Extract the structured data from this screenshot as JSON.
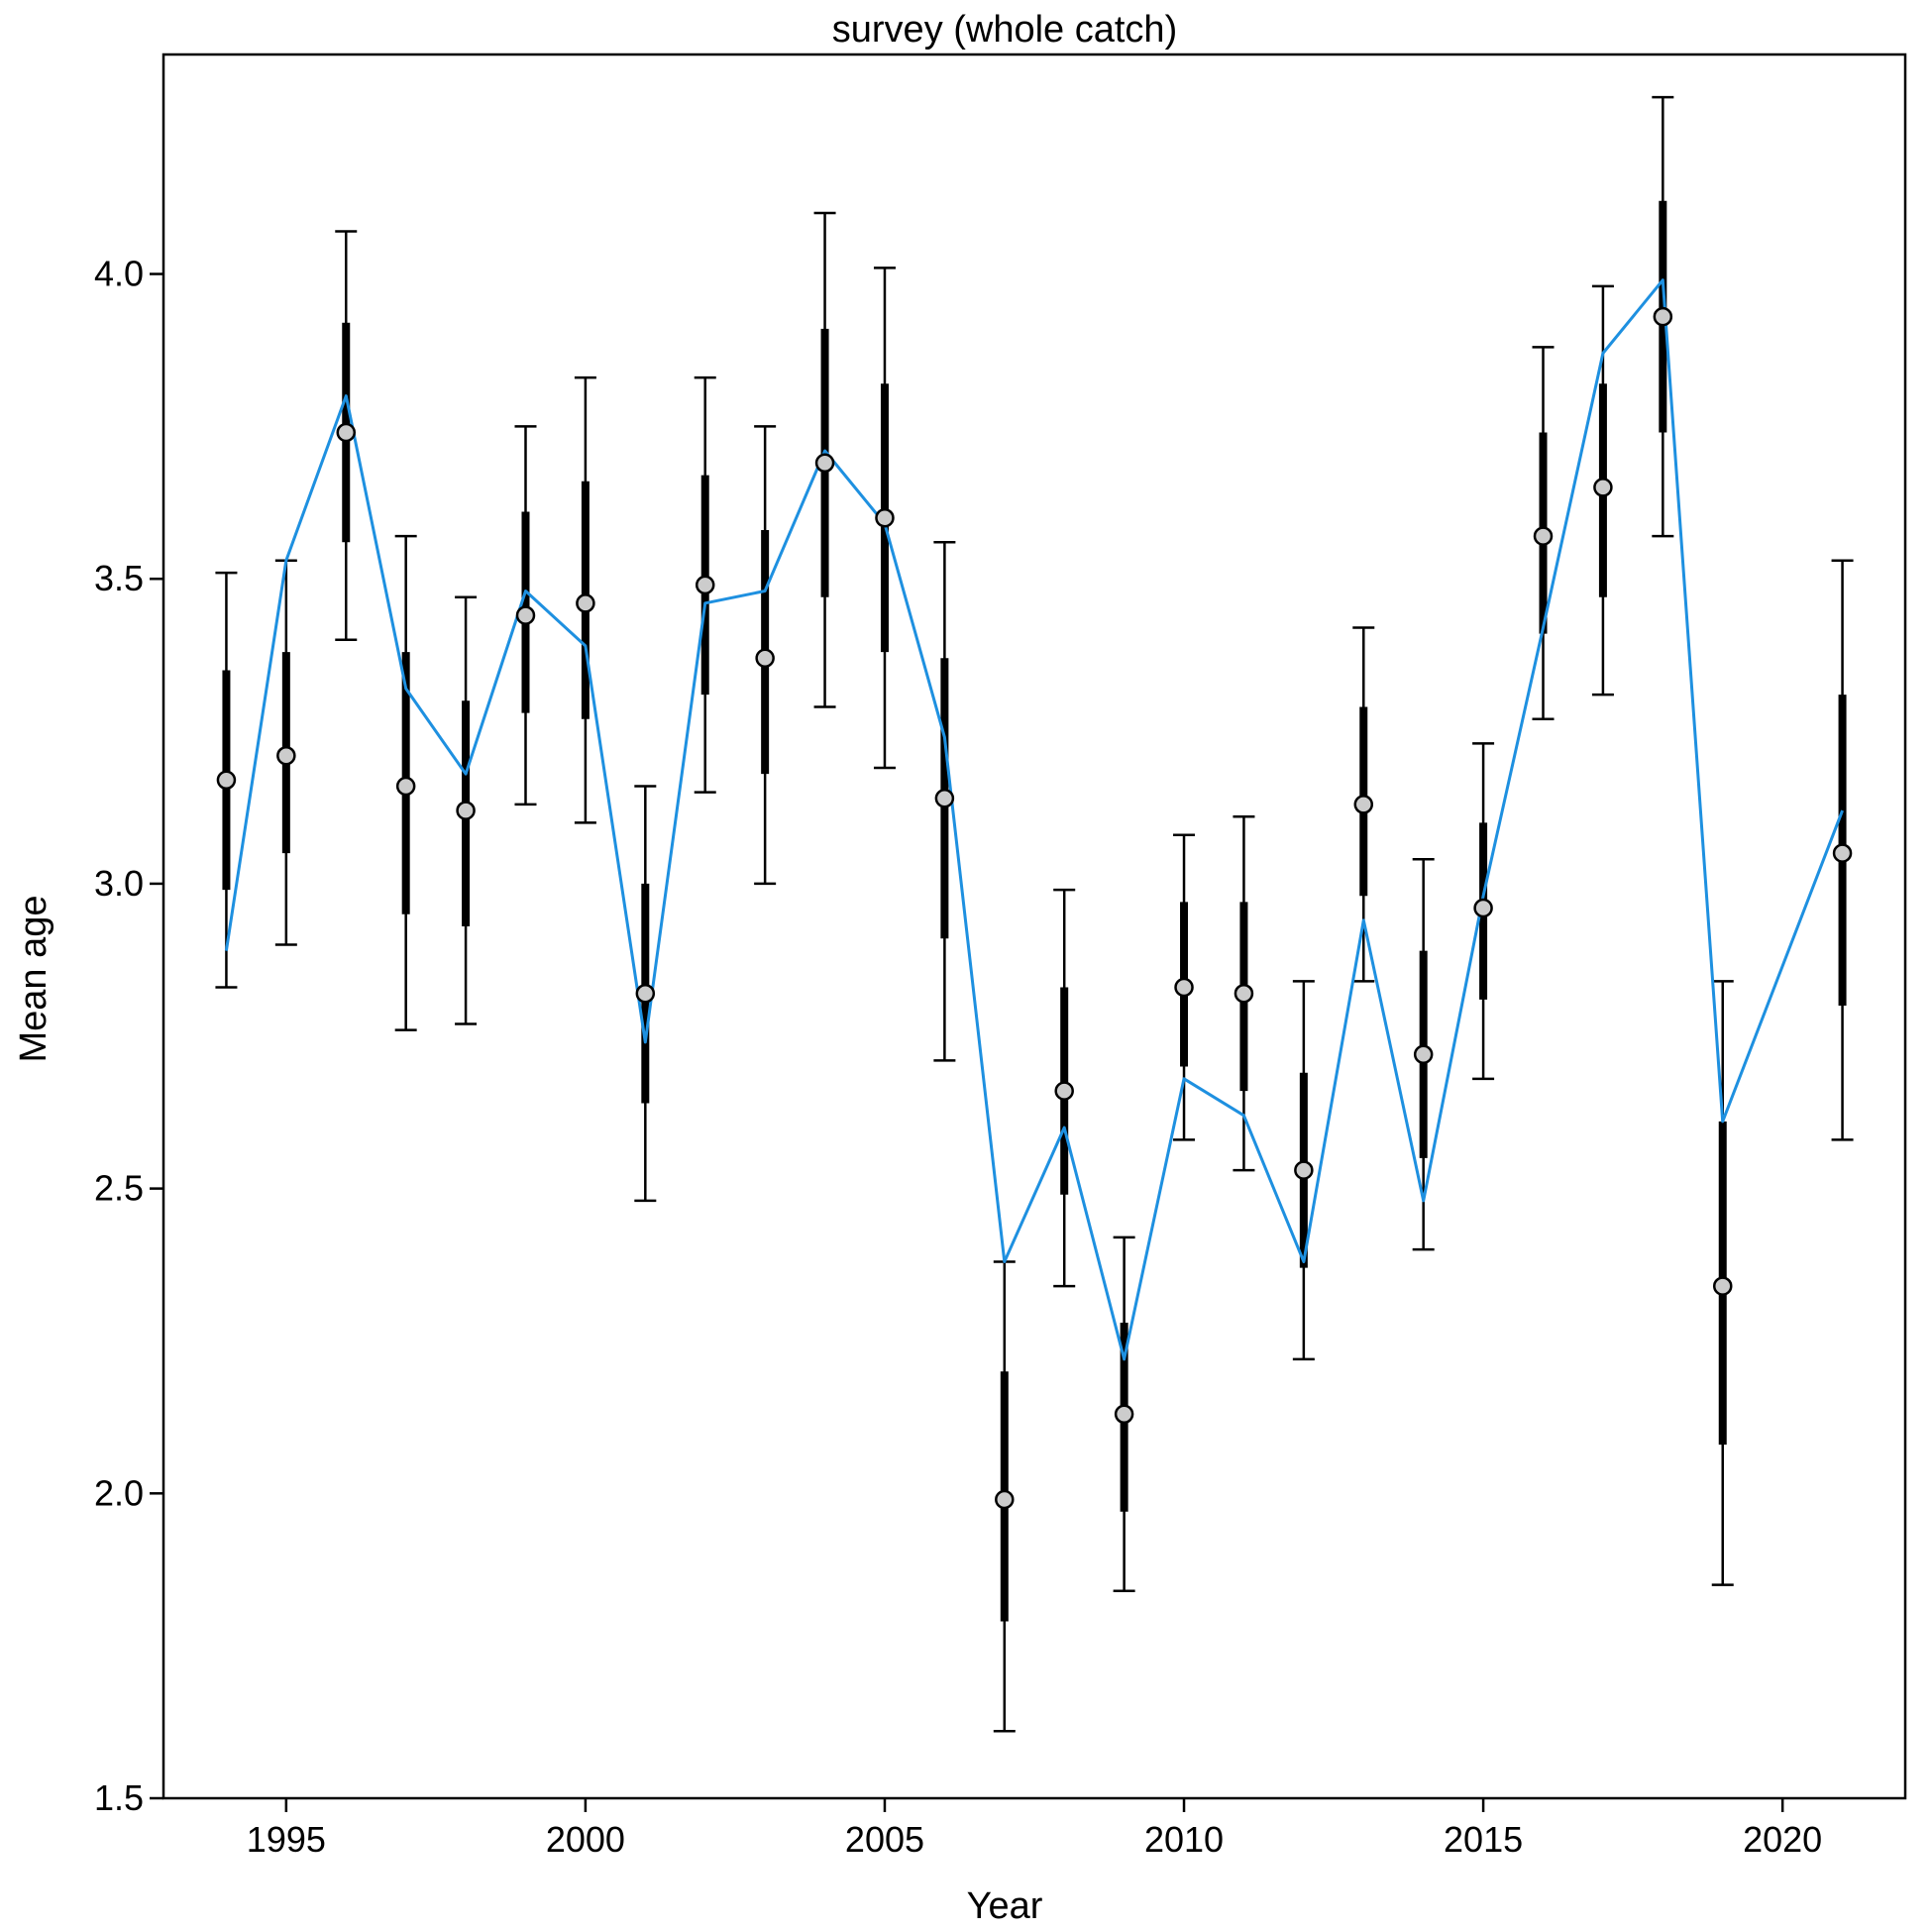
{
  "chart_data": {
    "type": "line",
    "title": "survey (whole catch)",
    "xlabel": "Year",
    "ylabel": "Mean age",
    "xlim": [
      1992.95,
      2022.05
    ],
    "ylim": [
      1.5,
      4.36
    ],
    "x_ticks": [
      1995,
      2000,
      2005,
      2010,
      2015,
      2020
    ],
    "x_tick_labels": [
      "1995",
      "2000",
      "2005",
      "2010",
      "2015",
      "2020"
    ],
    "y_ticks": [
      1.5,
      2.0,
      2.5,
      3.0,
      3.5,
      4.0
    ],
    "y_tick_labels": [
      "1.5",
      "2.0",
      "2.5",
      "3.0",
      "3.5",
      "4.0"
    ],
    "grid": false,
    "legend": "none",
    "colors": {
      "expected_line": "#1E90E0",
      "observed_fill": "#cccccc",
      "interval": "#000000"
    },
    "series": [
      {
        "type": "observed",
        "points": [
          {
            "x": 1994,
            "y": 3.17,
            "inner": [
              2.99,
              3.35
            ],
            "outer": [
              2.83,
              3.51
            ]
          },
          {
            "x": 1995,
            "y": 3.21,
            "inner": [
              3.05,
              3.38
            ],
            "outer": [
              2.9,
              3.53
            ]
          },
          {
            "x": 1996,
            "y": 3.74,
            "inner": [
              3.56,
              3.92
            ],
            "outer": [
              3.4,
              4.07
            ]
          },
          {
            "x": 1997,
            "y": 3.16,
            "inner": [
              2.95,
              3.38
            ],
            "outer": [
              2.76,
              3.57
            ]
          },
          {
            "x": 1998,
            "y": 3.12,
            "inner": [
              2.93,
              3.3
            ],
            "outer": [
              2.77,
              3.47
            ]
          },
          {
            "x": 1999,
            "y": 3.44,
            "inner": [
              3.28,
              3.61
            ],
            "outer": [
              3.13,
              3.75
            ]
          },
          {
            "x": 2000,
            "y": 3.46,
            "inner": [
              3.27,
              3.66
            ],
            "outer": [
              3.1,
              3.83
            ]
          },
          {
            "x": 2001,
            "y": 2.82,
            "inner": [
              2.64,
              3.0
            ],
            "outer": [
              2.48,
              3.16
            ]
          },
          {
            "x": 2002,
            "y": 3.49,
            "inner": [
              3.31,
              3.67
            ],
            "outer": [
              3.15,
              3.83
            ]
          },
          {
            "x": 2003,
            "y": 3.37,
            "inner": [
              3.18,
              3.58
            ],
            "outer": [
              3.0,
              3.75
            ]
          },
          {
            "x": 2004,
            "y": 3.69,
            "inner": [
              3.47,
              3.91
            ],
            "outer": [
              3.29,
              4.1
            ]
          },
          {
            "x": 2005,
            "y": 3.6,
            "inner": [
              3.38,
              3.82
            ],
            "outer": [
              3.19,
              4.01
            ]
          },
          {
            "x": 2006,
            "y": 3.14,
            "inner": [
              2.91,
              3.37
            ],
            "outer": [
              2.71,
              3.56
            ]
          },
          {
            "x": 2007,
            "y": 1.99,
            "inner": [
              1.79,
              2.2
            ],
            "outer": [
              1.61,
              2.38
            ]
          },
          {
            "x": 2008,
            "y": 2.66,
            "inner": [
              2.49,
              2.83
            ],
            "outer": [
              2.34,
              2.99
            ]
          },
          {
            "x": 2009,
            "y": 2.13,
            "inner": [
              1.97,
              2.28
            ],
            "outer": [
              1.84,
              2.42
            ]
          },
          {
            "x": 2010,
            "y": 2.83,
            "inner": [
              2.7,
              2.97
            ],
            "outer": [
              2.58,
              3.08
            ]
          },
          {
            "x": 2011,
            "y": 2.82,
            "inner": [
              2.66,
              2.97
            ],
            "outer": [
              2.53,
              3.11
            ]
          },
          {
            "x": 2012,
            "y": 2.53,
            "inner": [
              2.37,
              2.69
            ],
            "outer": [
              2.22,
              2.84
            ]
          },
          {
            "x": 2013,
            "y": 3.13,
            "inner": [
              2.98,
              3.29
            ],
            "outer": [
              2.84,
              3.42
            ]
          },
          {
            "x": 2014,
            "y": 2.72,
            "inner": [
              2.55,
              2.89
            ],
            "outer": [
              2.4,
              3.04
            ]
          },
          {
            "x": 2015,
            "y": 2.96,
            "inner": [
              2.81,
              3.1
            ],
            "outer": [
              2.68,
              3.23
            ]
          },
          {
            "x": 2016,
            "y": 3.57,
            "inner": [
              3.41,
              3.74
            ],
            "outer": [
              3.27,
              3.88
            ]
          },
          {
            "x": 2017,
            "y": 3.65,
            "inner": [
              3.47,
              3.82
            ],
            "outer": [
              3.31,
              3.98
            ]
          },
          {
            "x": 2018,
            "y": 3.93,
            "inner": [
              3.74,
              4.12
            ],
            "outer": [
              3.57,
              4.29
            ]
          },
          {
            "x": 2019,
            "y": 2.34,
            "inner": [
              2.08,
              2.61
            ],
            "outer": [
              1.85,
              2.84
            ]
          },
          {
            "x": 2021,
            "y": 3.05,
            "inner": [
              2.8,
              3.31
            ],
            "outer": [
              2.58,
              3.53
            ]
          }
        ]
      },
      {
        "type": "expected",
        "points": [
          {
            "x": 1994,
            "y": 2.89
          },
          {
            "x": 1995,
            "y": 3.53
          },
          {
            "x": 1996,
            "y": 3.8
          },
          {
            "x": 1997,
            "y": 3.32
          },
          {
            "x": 1998,
            "y": 3.18
          },
          {
            "x": 1999,
            "y": 3.48
          },
          {
            "x": 2000,
            "y": 3.39
          },
          {
            "x": 2001,
            "y": 2.74
          },
          {
            "x": 2002,
            "y": 3.46
          },
          {
            "x": 2003,
            "y": 3.48
          },
          {
            "x": 2004,
            "y": 3.71
          },
          {
            "x": 2005,
            "y": 3.59
          },
          {
            "x": 2006,
            "y": 3.24
          },
          {
            "x": 2007,
            "y": 2.38
          },
          {
            "x": 2008,
            "y": 2.6
          },
          {
            "x": 2009,
            "y": 2.22
          },
          {
            "x": 2010,
            "y": 2.68
          },
          {
            "x": 2011,
            "y": 2.62
          },
          {
            "x": 2012,
            "y": 2.38
          },
          {
            "x": 2013,
            "y": 2.94
          },
          {
            "x": 2014,
            "y": 2.48
          },
          {
            "x": 2015,
            "y": 2.98
          },
          {
            "x": 2016,
            "y": 3.42
          },
          {
            "x": 2017,
            "y": 3.87
          },
          {
            "x": 2018,
            "y": 3.99
          },
          {
            "x": 2019,
            "y": 2.61
          },
          {
            "x": 2021,
            "y": 3.12
          }
        ]
      }
    ]
  }
}
